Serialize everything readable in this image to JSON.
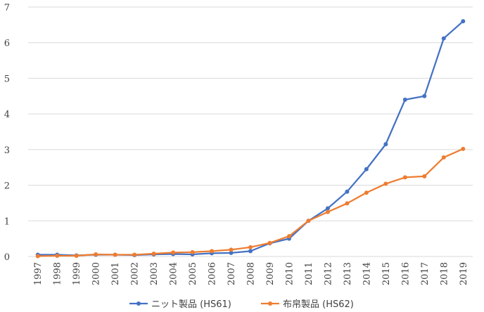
{
  "chart_data": {
    "type": "line",
    "title": "",
    "xlabel": "",
    "ylabel": "",
    "ylim": [
      0,
      7
    ],
    "yticks": [
      0,
      1,
      2,
      3,
      4,
      5,
      6,
      7
    ],
    "grid": "horizontal",
    "legend": "bottom",
    "categories": [
      "1997",
      "1998",
      "1999",
      "2000",
      "2001",
      "2002",
      "2003",
      "2004",
      "2005",
      "2006",
      "2007",
      "2008",
      "2009",
      "2010",
      "2011",
      "2012",
      "2013",
      "2014",
      "2015",
      "2016",
      "2017",
      "2018",
      "2019"
    ],
    "series": [
      {
        "name": "ニット製品 (HS61)",
        "color": "#4472C4",
        "values": [
          0.05,
          0.05,
          0.03,
          0.05,
          0.05,
          0.04,
          0.06,
          0.07,
          0.06,
          0.09,
          0.1,
          0.15,
          0.37,
          0.5,
          1.0,
          1.35,
          1.82,
          2.45,
          3.15,
          4.4,
          4.5,
          6.12,
          6.6
        ]
      },
      {
        "name": "布帛製品 (HS62)",
        "color": "#ED7D31",
        "values": [
          0.01,
          0.02,
          0.02,
          0.06,
          0.05,
          0.05,
          0.08,
          0.11,
          0.12,
          0.15,
          0.19,
          0.26,
          0.38,
          0.57,
          1.0,
          1.25,
          1.49,
          1.79,
          2.04,
          2.22,
          2.25,
          2.78,
          3.02
        ]
      }
    ]
  }
}
